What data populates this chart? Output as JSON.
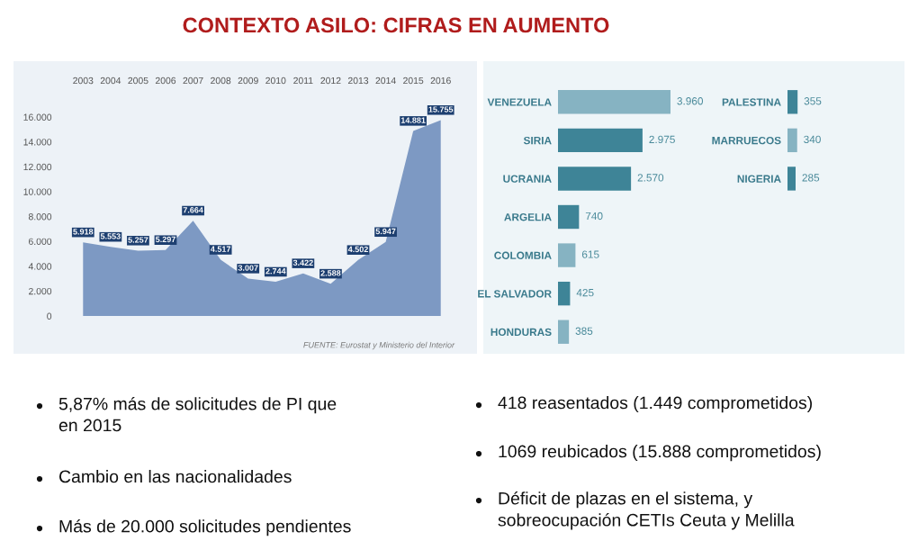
{
  "chart_data": [
    {
      "type": "area",
      "title": "CONTEXTO ASILO: CIFRAS EN AUMENTO",
      "categories": [
        "2003",
        "2004",
        "2005",
        "2006",
        "2007",
        "2008",
        "2009",
        "2010",
        "2011",
        "2012",
        "2013",
        "2014",
        "2015",
        "2016"
      ],
      "values": [
        5918,
        5553,
        5257,
        5297,
        7664,
        4517,
        3007,
        2744,
        3422,
        2588,
        4502,
        5947,
        14881,
        15755
      ],
      "value_labels": [
        "5.918",
        "5.553",
        "5.257",
        "5.297",
        "7.664",
        "4.517",
        "3.007",
        "2.744",
        "3.422",
        "2.588",
        "4.502",
        "5.947",
        "14.881",
        "15.755"
      ],
      "color": "#7d99c3",
      "ylim": [
        0,
        16000
      ],
      "yticks": [
        0,
        {
          "value": 2000,
          "label": "2.000"
        },
        {
          "value": 4000,
          "label": "4.000"
        },
        {
          "value": 6000,
          "label": "6.000"
        },
        {
          "value": 8000,
          "label": "8.000"
        },
        {
          "value": 10000,
          "label": "10.000"
        },
        {
          "value": 12000,
          "label": "12.000"
        },
        {
          "value": 14000,
          "label": "14.000"
        },
        {
          "value": 16000,
          "label": "16.000"
        }
      ],
      "annotations": [
        "FUENTE: Eurostat y Ministerio del Interior"
      ]
    },
    {
      "type": "bar",
      "orientation": "horizontal",
      "tick_labels": "y",
      "categories": [
        "VENEZUELA",
        "SIRIA",
        "UCRANIA",
        "ARGELIA",
        "COLOMBIA",
        "EL SALVADOR",
        "HONDURAS"
      ],
      "values": [
        3960,
        2975,
        2570,
        740,
        615,
        425,
        385
      ],
      "value_labels": [
        "3.960",
        "2.975",
        "2.570",
        "740",
        "615",
        "425",
        "385"
      ],
      "colors": [
        "#86b3c2",
        "#3e8497",
        "#3e8497",
        "#3e8497",
        "#86b3c2",
        "#3e8497",
        "#86b3c2"
      ]
    },
    {
      "type": "bar",
      "orientation": "horizontal",
      "tick_labels": "y",
      "categories": [
        "PALESTINA",
        "MARRUECOS",
        "NIGERIA"
      ],
      "values": [
        355,
        340,
        285
      ],
      "value_labels": [
        "355",
        "340",
        "285"
      ],
      "colors": [
        "#3e8497",
        "#86b3c2",
        "#3e8497"
      ]
    },
    {
      "type": "other",
      "annotations": [
        "5,87% más de solicitudes de PI que\nen 2015",
        "Cambio en las nacionalidades",
        "Más de 20.000 solicitudes pendientes",
        "418 reasentados (1.449 comprometidos)",
        "1069 reubicados (15.888 comprometidos)",
        "Déficit de plazas en el sistema, y\nsobreocupación CETIs Ceuta y Melilla"
      ]
    }
  ]
}
